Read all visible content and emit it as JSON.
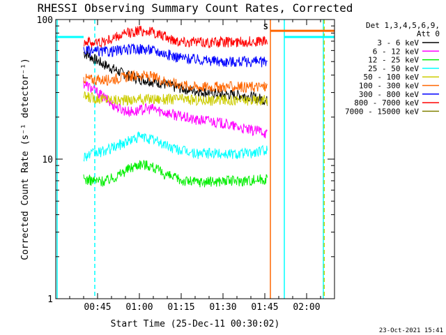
{
  "chart_data": {
    "type": "line",
    "title": "RHESSI Observing Summary Count Rates, Corrected",
    "xlabel": "Start Time (25-Dec-11 00:30:02)",
    "ylabel": "Corrected Count Rate (s⁻¹ detector⁻¹)",
    "yscale": "log",
    "ylim": [
      1,
      100
    ],
    "xlim_minutes_after_start": [
      0,
      100
    ],
    "x_ticks": [
      {
        "label": "00:45",
        "value": 15
      },
      {
        "label": "01:00",
        "value": 30
      },
      {
        "label": "01:15",
        "value": 45
      },
      {
        "label": "01:30",
        "value": 60
      },
      {
        "label": "01:45",
        "value": 75
      },
      {
        "label": "02:00",
        "value": 90
      }
    ],
    "y_ticks": [
      {
        "label": "1",
        "value": 1
      },
      {
        "label": "10",
        "value": 10
      },
      {
        "label": "100",
        "value": 100
      }
    ],
    "legend_header": [
      "Det 1,3,4,5,6,9,",
      "Att 0"
    ],
    "legend_position": "right",
    "series": [
      {
        "name": "3 - 6 keV",
        "color": "#000000",
        "x": [
          10,
          12,
          14,
          17,
          20,
          23,
          26,
          29,
          32,
          35,
          38,
          42,
          46,
          50,
          55,
          60,
          65,
          70,
          74,
          76
        ],
        "y": [
          58,
          55,
          52,
          48,
          45,
          42,
          40,
          38,
          37,
          36,
          35,
          33,
          32,
          31,
          30,
          29,
          29,
          28,
          27,
          26
        ]
      },
      {
        "name": "6 - 12 keV",
        "color": "#ff00ff",
        "x": [
          10,
          12,
          14,
          17,
          20,
          23,
          26,
          29,
          32,
          35,
          38,
          42,
          46,
          50,
          55,
          60,
          65,
          70,
          74,
          76
        ],
        "y": [
          35,
          33,
          31,
          28,
          25,
          23,
          22,
          22,
          23,
          23,
          22,
          21,
          20,
          19,
          19,
          18,
          17,
          16,
          16,
          15
        ]
      },
      {
        "name": "12 - 25 keV",
        "color": "#00ee00",
        "x": [
          10,
          14,
          18,
          22,
          26,
          30,
          34,
          38,
          42,
          46,
          50,
          55,
          60,
          65,
          70,
          74,
          76
        ],
        "y": [
          7.2,
          7.0,
          7.0,
          7.6,
          8.5,
          9.3,
          9.0,
          8.0,
          7.4,
          7.0,
          6.9,
          6.9,
          7.0,
          7.0,
          7.1,
          7.2,
          7.3
        ]
      },
      {
        "name": "25 - 50 keV",
        "color": "#00ffff",
        "x": [
          10,
          14,
          18,
          22,
          26,
          30,
          34,
          38,
          42,
          46,
          50,
          55,
          60,
          65,
          70,
          74,
          76
        ],
        "y": [
          10.5,
          11.0,
          11.5,
          12.5,
          13.5,
          14.5,
          14.0,
          13.0,
          12.0,
          11.5,
          11.0,
          11.0,
          11.0,
          11.0,
          11.0,
          11.5,
          12.0
        ]
      },
      {
        "name": "50 - 100 keV",
        "color": "#cccc00",
        "x": [
          10,
          14,
          18,
          22,
          26,
          30,
          34,
          38,
          42,
          46,
          50,
          55,
          60,
          65,
          70,
          74,
          76
        ],
        "y": [
          28,
          27.5,
          27,
          26.5,
          26.5,
          27,
          27,
          27,
          27,
          27,
          26.5,
          26.5,
          26.5,
          26.5,
          26.5,
          26.5,
          26.5
        ]
      },
      {
        "name": "100 - 300 keV",
        "color": "#ff6600",
        "x": [
          10,
          14,
          18,
          22,
          26,
          30,
          34,
          38,
          42,
          46,
          50,
          55,
          60,
          65,
          70,
          74,
          76
        ],
        "y": [
          38,
          37,
          37,
          38,
          39,
          40,
          39,
          37,
          35,
          34,
          33,
          33,
          33,
          33,
          33,
          33,
          33
        ]
      },
      {
        "name": "300 - 800 keV",
        "color": "#0000ff",
        "x": [
          10,
          14,
          18,
          22,
          26,
          30,
          34,
          38,
          42,
          46,
          50,
          55,
          60,
          65,
          70,
          74,
          76
        ],
        "y": [
          60,
          59,
          59,
          60,
          61,
          62,
          61,
          58,
          55,
          53,
          52,
          51,
          50,
          50,
          50,
          50,
          50
        ]
      },
      {
        "name": "800 - 7000 keV",
        "color": "#ff0000",
        "x": [
          10,
          14,
          18,
          22,
          26,
          30,
          34,
          38,
          42,
          46,
          50,
          55,
          60,
          65,
          70,
          74,
          76
        ],
        "y": [
          70,
          68,
          70,
          75,
          80,
          84,
          82,
          77,
          72,
          70,
          69,
          69,
          69,
          69,
          70,
          70,
          70
        ]
      },
      {
        "name": "7000 - 15000 keV",
        "color": "#808000",
        "x": [],
        "y": []
      }
    ],
    "vertical_markers": [
      {
        "x": 0.5,
        "color": "#00ffff",
        "style": "solid"
      },
      {
        "x": 14,
        "color": "#00ffff",
        "style": "dashed"
      },
      {
        "x": 77,
        "color": "#ff6600",
        "style": "solid"
      },
      {
        "x": 82,
        "color": "#00ffff",
        "style": "solid"
      },
      {
        "x": 96,
        "color": "#00ffff",
        "style": "solid"
      },
      {
        "x": 96.3,
        "color": "#cccc00",
        "style": "dashed"
      }
    ],
    "horizontal_segments": [
      {
        "x0": 0,
        "x1": 10,
        "y": 75,
        "color": "#00ffff"
      },
      {
        "x0": 82,
        "x1": 100,
        "y": 75,
        "color": "#00ffff"
      },
      {
        "x0": 77,
        "x1": 100,
        "y": 83,
        "color": "#ff6600"
      }
    ],
    "annotations": [
      {
        "text": "S",
        "color": "#ff6600"
      }
    ],
    "footer_date": "23-Oct-2021 15:41"
  }
}
